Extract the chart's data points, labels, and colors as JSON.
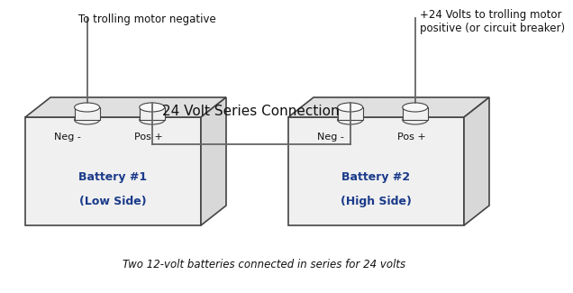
{
  "title": "24 Volt Series Connection",
  "bottom_label": "Two 12-volt batteries connected in series for 24 volts",
  "top_left_label": "To trolling motor negative",
  "top_right_label": "+24 Volts to trolling motor\npositive (or circuit breaker)",
  "bat1_neg": "Neg -",
  "bat1_pos": "Pos +",
  "bat1_name": "Battery #1",
  "bat1_side": "(Low Side)",
  "bat2_neg": "Neg -",
  "bat2_pos": "Pos +",
  "bat2_name": "Battery #2",
  "bat2_side": "(High Side)",
  "bg_color": "#ffffff",
  "box_face_color": "#f0f0f0",
  "box_top_color": "#e0e0e0",
  "box_side_color": "#d8d8d8",
  "box_edge_color": "#444444",
  "line_color": "#666666",
  "text_color": "#111111",
  "bat_text_color": "#1a3a8a",
  "label_text_color": "#111111",
  "terminal_face": "#f0f0f0",
  "terminal_edge": "#444444",
  "terminal_top": "#e8e8e8"
}
